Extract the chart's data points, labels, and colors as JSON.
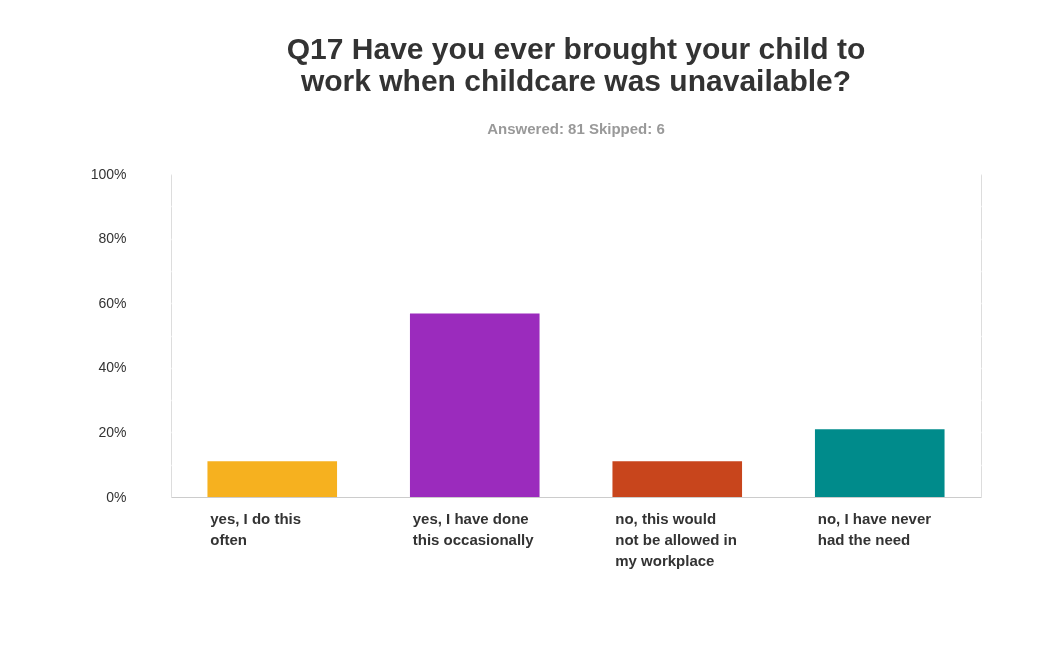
{
  "chart_data": {
    "type": "bar",
    "title": "Q17 Have you ever brought your child to work when childcare was unavailable?",
    "subtitle": "Answered: 81    Skipped: 6",
    "categories": [
      "yes, I do this often",
      "yes, I have done this occasionally",
      "no, this would not be allowed in my workplace",
      "no, I have never had the need"
    ],
    "values": [
      11.1,
      56.8,
      11.1,
      21.0
    ],
    "colors": [
      "#f6b11f",
      "#9b2bbd",
      "#c8451c",
      "#008b8b"
    ],
    "ylim": [
      0,
      100
    ],
    "yticks": [
      {
        "value": 0,
        "label": "0%"
      },
      {
        "value": 10,
        "label": null
      },
      {
        "value": 20,
        "label": "20%"
      },
      {
        "value": 30,
        "label": null
      },
      {
        "value": 40,
        "label": "40%"
      },
      {
        "value": 50,
        "label": null
      },
      {
        "value": 60,
        "label": "60%"
      },
      {
        "value": 70,
        "label": null
      },
      {
        "value": 80,
        "label": "80%"
      },
      {
        "value": 90,
        "label": null
      },
      {
        "value": 100,
        "label": "100%"
      }
    ],
    "grid": true,
    "legend": false
  }
}
